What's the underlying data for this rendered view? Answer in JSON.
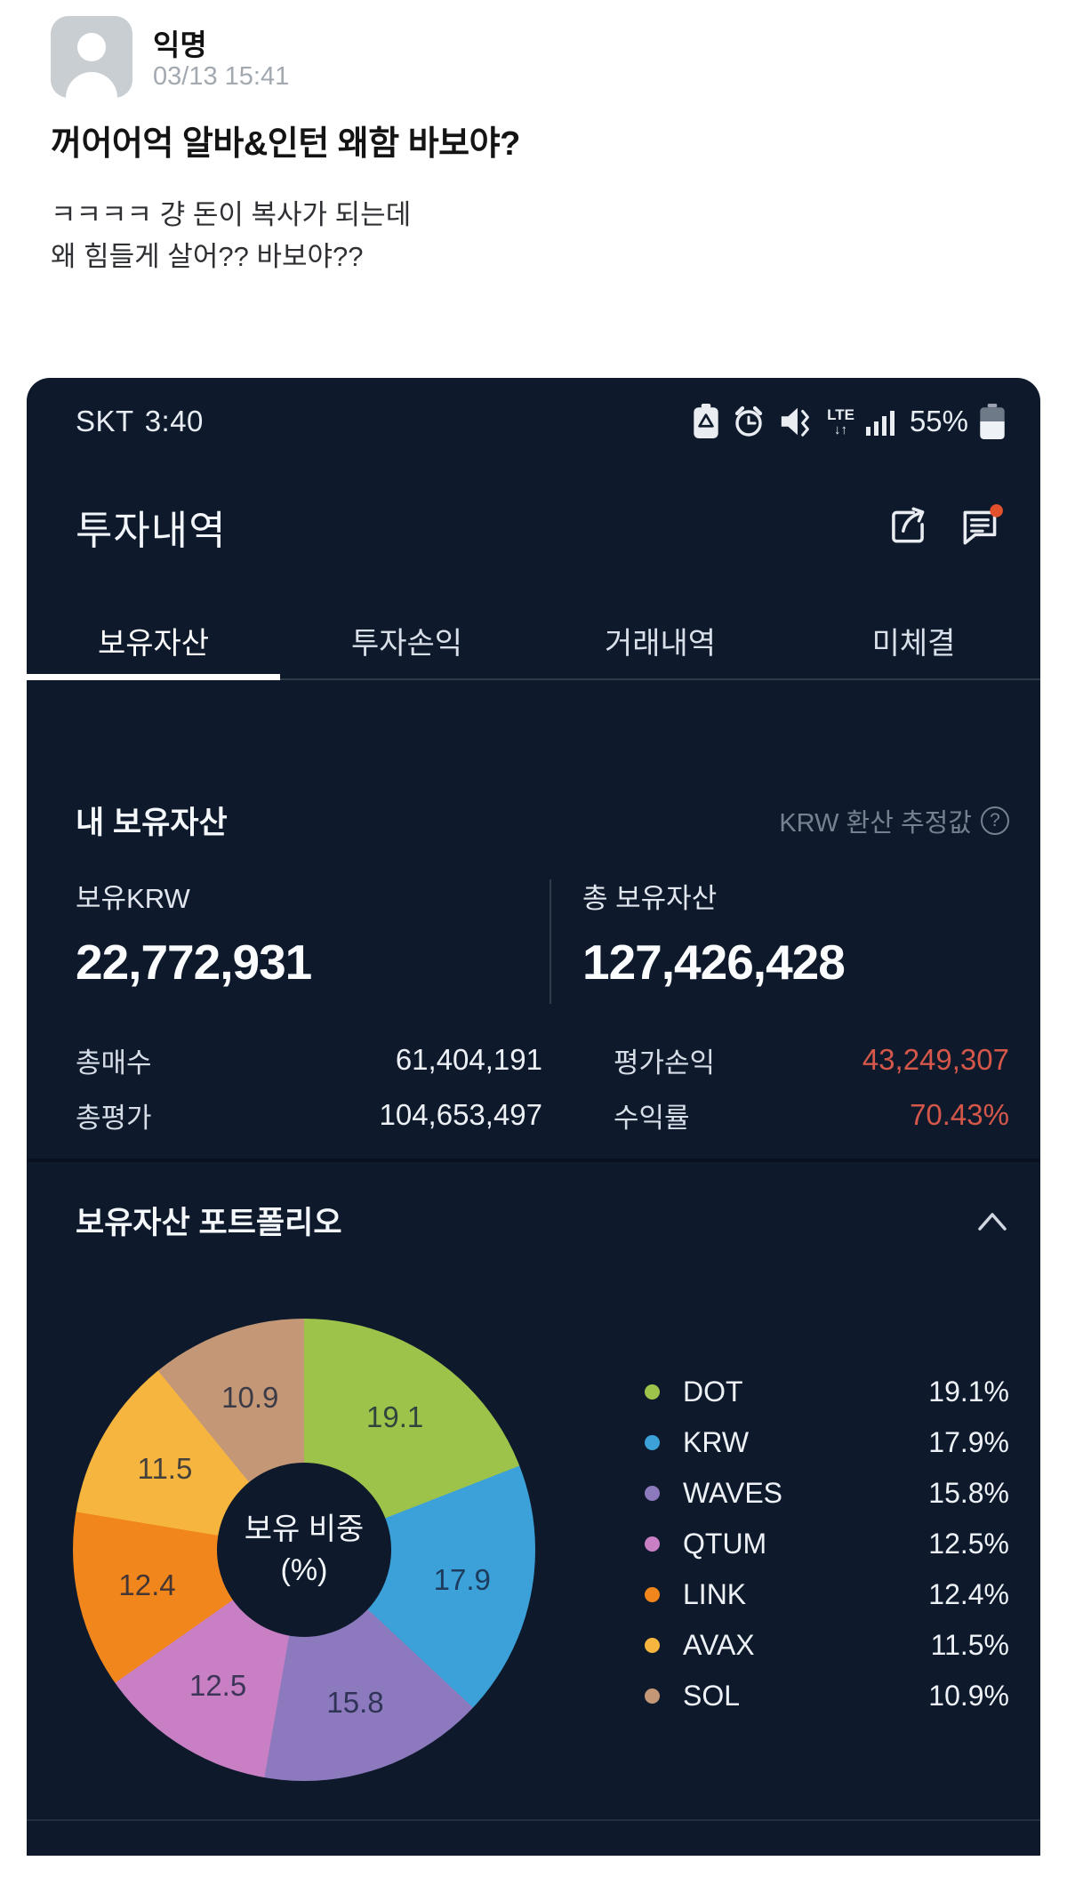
{
  "post": {
    "author": "익명",
    "timestamp": "03/13 15:41",
    "title": "꺼어어억 알바&인턴 왜함 바보야?",
    "body_line1": "ㅋㅋㅋㅋ 걍 돈이 복사가 되는데",
    "body_line2": "왜 힘들게 살어?? 바보야??"
  },
  "app": {
    "status_bar": {
      "carrier": "SKT",
      "time": "3:40",
      "battery_percent": "55%",
      "network": "LTE",
      "network_arrows": "↓↑"
    },
    "header": {
      "title": "투자내역"
    },
    "tabs": [
      {
        "label": "보유자산"
      },
      {
        "label": "투자손익"
      },
      {
        "label": "거래내역"
      },
      {
        "label": "미체결"
      }
    ],
    "assets": {
      "section_title": "내 보유자산",
      "krw_note": "KRW 환산 추정값",
      "q_mark": "?",
      "holding_krw_label": "보유KRW",
      "holding_krw_value": "22,772,931",
      "total_assets_label": "총 보유자산",
      "total_assets_value": "127,426,428",
      "total_buy_label": "총매수",
      "total_buy_value": "61,404,191",
      "eval_profit_label": "평가손익",
      "eval_profit_value": "43,249,307",
      "total_eval_label": "총평가",
      "total_eval_value": "104,653,497",
      "yield_label": "수익률",
      "yield_value": "70.43%"
    },
    "portfolio": {
      "section_title": "보유자산 포트폴리오"
    }
  },
  "chart_data": {
    "type": "pie",
    "donut": true,
    "title": "보유자산 포트폴리오",
    "center_line1": "보유 비중",
    "center_line2": "(%)",
    "unit": "%",
    "legend_position": "right",
    "start_angle_deg": 0,
    "direction": "clockwise",
    "series": [
      {
        "name": "DOT",
        "value": 19.1,
        "percent_label": "19.1%",
        "color": "#9ec34b"
      },
      {
        "name": "KRW",
        "value": 17.9,
        "percent_label": "17.9%",
        "color": "#3ba1d8"
      },
      {
        "name": "WAVES",
        "value": 15.8,
        "percent_label": "15.8%",
        "color": "#8d7abe"
      },
      {
        "name": "QTUM",
        "value": 12.5,
        "percent_label": "12.5%",
        "color": "#c97fc3"
      },
      {
        "name": "LINK",
        "value": 12.4,
        "percent_label": "12.4%",
        "color": "#f1861d"
      },
      {
        "name": "AVAX",
        "value": 11.5,
        "percent_label": "11.5%",
        "color": "#f6b53f"
      },
      {
        "name": "SOL",
        "value": 10.9,
        "percent_label": "10.9%",
        "color": "#c49877"
      }
    ]
  },
  "colors": {
    "panel_bg": "#0e1a2c",
    "profit_red": "#d4574a",
    "notification_dot": "#e2502c"
  }
}
